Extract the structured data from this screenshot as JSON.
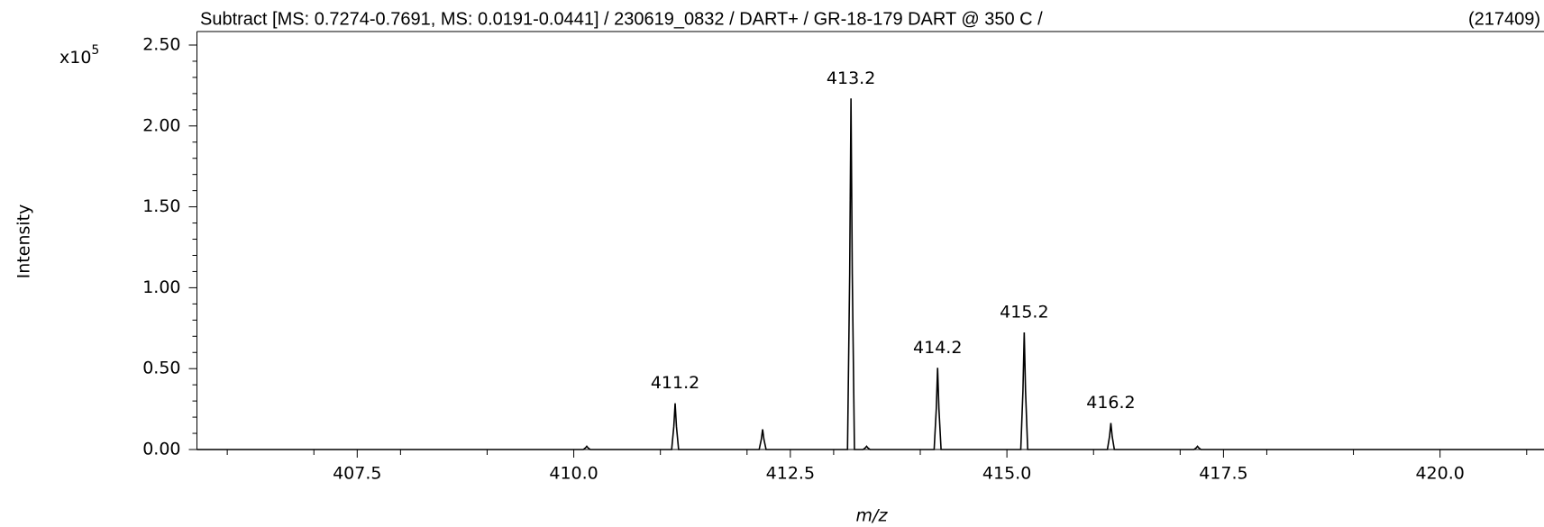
{
  "chart_data": {
    "type": "line",
    "title": "Subtract [MS: 0.7274-0.7691, MS: 0.0191-0.0441] / 230619_0832 / DART+ / GR-18-179 DART @ 350 C /",
    "title_right": "(217409)",
    "x_label": "m/z",
    "y_label": "Intensity",
    "y_multiplier": "x10",
    "y_multiplier_exponent": "5",
    "xlim": [
      405.65,
      421.2
    ],
    "ylim": [
      0,
      2.5
    ],
    "xticks": [
      407.5,
      {
        "value": 410,
        "label": "410.0"
      },
      412.5,
      {
        "value": 415,
        "label": "415.0"
      },
      417.5,
      {
        "value": 420,
        "label": "420.0"
      }
    ],
    "yticks": [
      {
        "value": 0,
        "label": "0.00"
      },
      {
        "value": 0.5,
        "label": "0.50"
      },
      {
        "value": 1,
        "label": "1.00"
      },
      {
        "value": 1.5,
        "label": "1.50"
      },
      {
        "value": 2,
        "label": "2.00"
      },
      {
        "value": 2.5,
        "label": "2.50"
      }
    ],
    "x_minor_ticks": [
      406,
      407,
      408,
      409,
      411,
      412,
      413,
      414,
      416,
      417,
      418,
      419,
      421
    ],
    "y_minor_ticks": [
      0.1,
      0.2,
      0.3,
      0.4,
      0.6,
      0.7,
      0.8,
      0.9,
      1.1,
      1.2,
      1.3,
      1.4,
      1.6,
      1.7,
      1.8,
      1.9,
      2.1,
      2.2,
      2.3,
      2.4
    ],
    "series": [
      {
        "color": "#000000",
        "x": [
          405.65,
          410.11,
          410.135,
          410.15,
          410.165,
          410.19,
          411.13,
          411.155,
          411.17,
          411.185,
          411.21,
          412.14,
          412.165,
          412.18,
          412.195,
          412.22,
          413.16,
          413.185,
          413.2,
          413.215,
          413.24,
          413.34,
          413.365,
          413.38,
          413.395,
          413.42,
          414.16,
          414.185,
          414.2,
          414.215,
          414.24,
          415.16,
          415.185,
          415.2,
          415.215,
          415.24,
          416.16,
          416.185,
          416.2,
          416.215,
          416.24,
          417.16,
          417.185,
          417.2,
          417.215,
          417.24,
          421.2
        ],
        "values": [
          0,
          0,
          0.01,
          0.02,
          0.01,
          0,
          0,
          0.143,
          0.286,
          0.143,
          0,
          0,
          0.063,
          0.125,
          0.063,
          0,
          0,
          1.085,
          2.17,
          1.085,
          0,
          0,
          0.01,
          0.02,
          0.01,
          0,
          0,
          0.253,
          0.505,
          0.253,
          0,
          0,
          0.362,
          0.724,
          0.362,
          0,
          0,
          0.082,
          0.164,
          0.082,
          0,
          0,
          0.01,
          0.02,
          0.01,
          0,
          0
        ]
      }
    ],
    "peak_labels": [
      {
        "x": 411.17,
        "y": 0.286,
        "label": "411.2"
      },
      {
        "x": 413.2,
        "y": 2.17,
        "label": "413.2"
      },
      {
        "x": 414.2,
        "y": 0.505,
        "label": "414.2"
      },
      {
        "x": 415.2,
        "y": 0.724,
        "label": "415.2"
      },
      {
        "x": 416.2,
        "y": 0.164,
        "label": "416.2"
      }
    ]
  }
}
